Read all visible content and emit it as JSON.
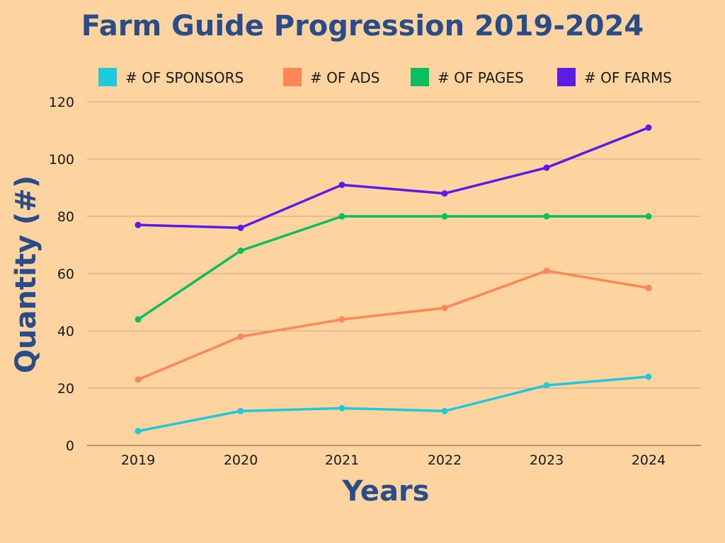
{
  "chart_data": {
    "type": "line",
    "title": "Farm Guide Progression 2019-2024",
    "xlabel": "Years",
    "ylabel": "Quantity (#)",
    "categories": [
      "2019",
      "2020",
      "2021",
      "2022",
      "2023",
      "2024"
    ],
    "ylim": [
      0,
      120
    ],
    "yticks": [
      0,
      20,
      40,
      60,
      80,
      100,
      120
    ],
    "grid": true,
    "legend_position": "top",
    "series": [
      {
        "name": "# OF SPONSORS",
        "color": "#1FC8DB",
        "values": [
          5,
          12,
          13,
          12,
          21,
          24
        ]
      },
      {
        "name": "# OF ADS",
        "color": "#FF8656",
        "values": [
          23,
          38,
          44,
          48,
          61,
          55
        ]
      },
      {
        "name": "# OF PAGES",
        "color": "#0ABE5F",
        "values": [
          44,
          68,
          80,
          80,
          80,
          80
        ]
      },
      {
        "name": "# OF FARMS",
        "color": "#5B1CE6",
        "values": [
          77,
          76,
          91,
          88,
          97,
          111
        ]
      }
    ],
    "colors": {
      "background": "#FDD39F",
      "title": "#2A4D8A",
      "grid": "#C9A57F"
    }
  }
}
